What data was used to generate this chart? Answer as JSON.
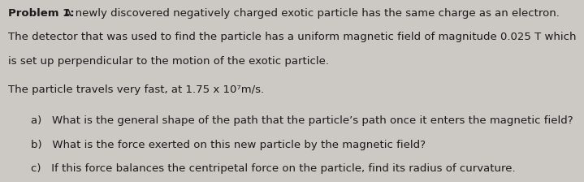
{
  "background_color": "#ccc8c4",
  "text_color": "#1a1a1a",
  "title_bold": "Problem 1:",
  "title_rest": " A newly discovered negatively charged exotic particle has the same charge as an electron.",
  "line2": "The detector that was used to find the particle has a uniform magnetic field of magnitude 0.025 T which",
  "line3": "is set up perpendicular to the motion of the exotic particle.",
  "blank": "",
  "line4": "The particle travels very fast, at 1.75 x 10⁷m/s.",
  "qa": "a)   What is the general shape of the path that the particle’s path once it enters the magnetic field?",
  "qb": "b)   What is the force exerted on this new particle by the magnetic field?",
  "qc": "c)   If this force balances the centripetal force on the particle, find its radius of curvature.",
  "font_size": 9.5,
  "font_family": "DejaVu Sans"
}
